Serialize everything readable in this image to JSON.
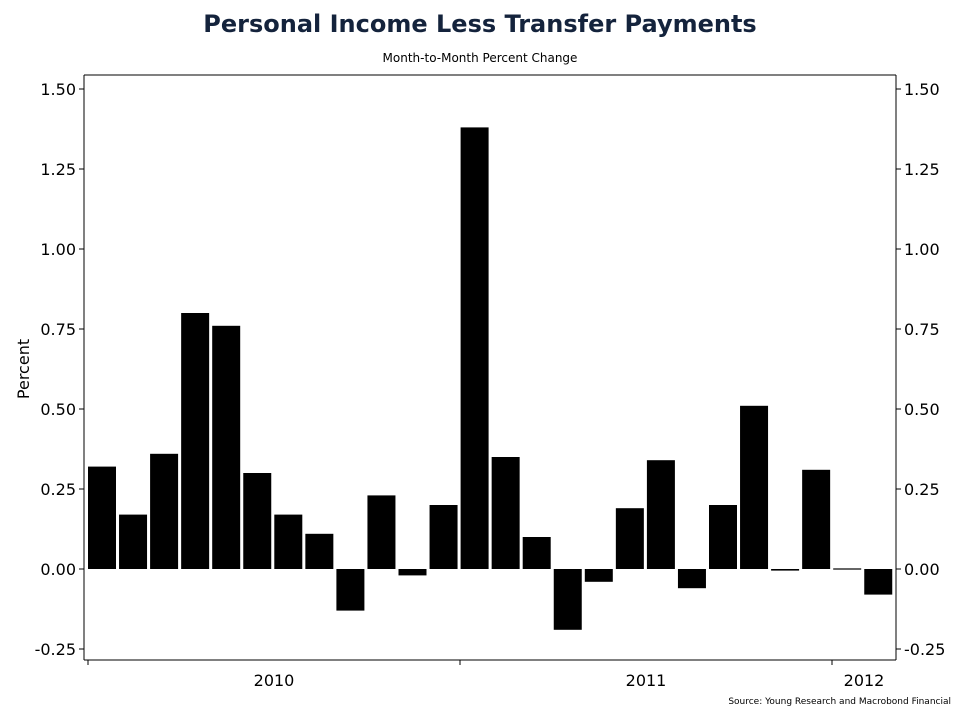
{
  "title": "Personal Income Less Transfer Payments",
  "subtitle": "Month-to-Month Percent Change",
  "source": "Source: Young Research and Macrobond Financial",
  "colors": {
    "title": "#14233c",
    "bar": "#000000",
    "axis": "#000000",
    "background": "#ffffff"
  },
  "chart_data": {
    "type": "bar",
    "title": "Personal Income Less Transfer Payments",
    "subtitle": "Month-to-Month Percent Change",
    "xlabel": "",
    "ylabel": "Percent",
    "ylim": [
      -0.28,
      1.55
    ],
    "yticks": [
      -0.25,
      0.0,
      0.25,
      0.5,
      0.75,
      1.0,
      1.25,
      1.5
    ],
    "ytick_labels": [
      "-0.25",
      "0.00",
      "0.25",
      "0.50",
      "0.75",
      "1.00",
      "1.25",
      "1.50"
    ],
    "right_axis": true,
    "grid": false,
    "x_year_labels": [
      "2010",
      "2011",
      "2012"
    ],
    "series": [
      {
        "values": [
          0.32,
          0.17,
          0.36,
          0.8,
          0.76,
          0.3,
          0.17,
          0.11,
          -0.13,
          0.23,
          -0.02,
          0.2,
          1.38,
          0.35,
          0.1,
          -0.19,
          -0.04,
          0.19,
          0.34,
          -0.06,
          0.2,
          0.51,
          -0.005,
          0.31,
          0.002,
          -0.08
        ]
      }
    ]
  }
}
